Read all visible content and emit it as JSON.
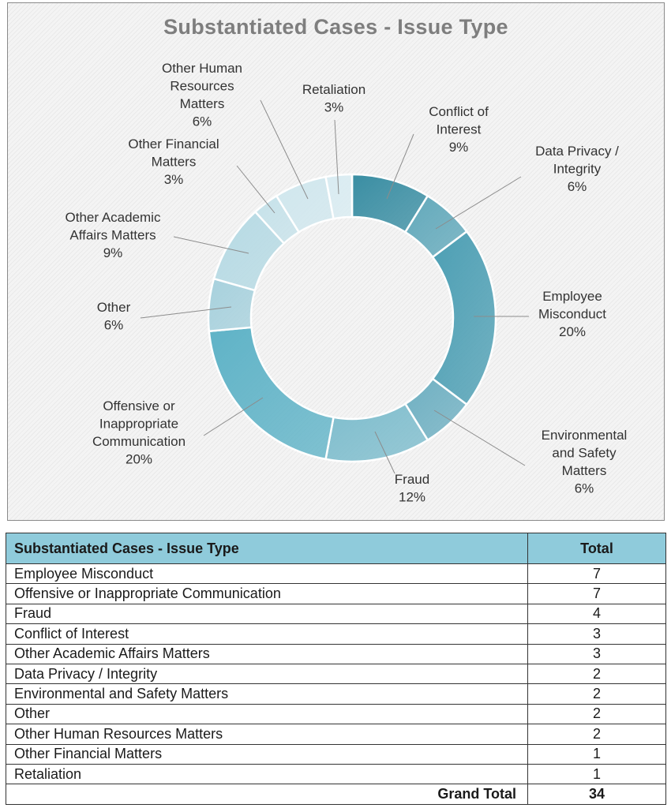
{
  "chart_data": {
    "type": "pie",
    "variant": "donut",
    "title": "Substantiated Cases - Issue Type",
    "slices": [
      {
        "label": "Conflict of Interest",
        "value": 3,
        "pct": "9%",
        "color": "#3a8ea3"
      },
      {
        "label": "Data Privacy / Integrity",
        "value": 2,
        "pct": "6%",
        "color": "#62a9bb"
      },
      {
        "label": "Employee Misconduct",
        "value": 7,
        "pct": "20%",
        "color": "#4d9fb4"
      },
      {
        "label": "Environmental and Safety Matters",
        "value": 2,
        "pct": "6%",
        "color": "#6fb0c2"
      },
      {
        "label": "Fraud",
        "value": 4,
        "pct": "12%",
        "color": "#7ebdcd"
      },
      {
        "label": "Offensive or Inappropriate Communication",
        "value": 7,
        "pct": "20%",
        "color": "#5fb3c7"
      },
      {
        "label": "Other",
        "value": 2,
        "pct": "6%",
        "color": "#a7d1dd"
      },
      {
        "label": "Other Academic Affairs Matters",
        "value": 3,
        "pct": "9%",
        "color": "#b6dae4"
      },
      {
        "label": "Other Financial Matters",
        "value": 1,
        "pct": "3%",
        "color": "#c6e2ea"
      },
      {
        "label": "Other Human Resources Matters",
        "value": 2,
        "pct": "6%",
        "color": "#d0e7ee"
      },
      {
        "label": "Retaliation",
        "value": 1,
        "pct": "3%",
        "color": "#d9ecf2"
      }
    ],
    "labels": [
      {
        "lines": [
          "Conflict of",
          "Interest",
          "9%"
        ]
      },
      {
        "lines": [
          "Data Privacy /",
          "Integrity",
          "6%"
        ]
      },
      {
        "lines": [
          "Employee",
          "Misconduct",
          "20%"
        ]
      },
      {
        "lines": [
          "Environmental",
          "and Safety",
          "Matters",
          "6%"
        ]
      },
      {
        "lines": [
          "Fraud",
          "12%"
        ]
      },
      {
        "lines": [
          "Offensive or",
          "Inappropriate",
          "Communication",
          "20%"
        ]
      },
      {
        "lines": [
          "Other",
          "6%"
        ]
      },
      {
        "lines": [
          "Other Academic",
          "Affairs Matters",
          "9%"
        ]
      },
      {
        "lines": [
          "Other Financial",
          "Matters",
          "3%"
        ]
      },
      {
        "lines": [
          "Other Human",
          "Resources",
          "Matters",
          "6%"
        ]
      },
      {
        "lines": [
          "Retaliation",
          "3%"
        ]
      }
    ]
  },
  "table": {
    "header": {
      "category": "Substantiated Cases - Issue Type",
      "total": "Total"
    },
    "rows": [
      {
        "category": "Employee Misconduct",
        "total": "7"
      },
      {
        "category": "Offensive or Inappropriate Communication",
        "total": "7"
      },
      {
        "category": "Fraud",
        "total": "4"
      },
      {
        "category": "Conflict of Interest",
        "total": "3"
      },
      {
        "category": "Other Academic Affairs Matters",
        "total": "3"
      },
      {
        "category": "Data Privacy / Integrity",
        "total": "2"
      },
      {
        "category": "Environmental and Safety Matters",
        "total": "2"
      },
      {
        "category": "Other",
        "total": "2"
      },
      {
        "category": "Other Human Resources Matters",
        "total": "2"
      },
      {
        "category": "Other Financial Matters",
        "total": "1"
      },
      {
        "category": "Retaliation",
        "total": "1"
      }
    ],
    "grand_total": {
      "label": "Grand Total",
      "value": "34"
    }
  }
}
